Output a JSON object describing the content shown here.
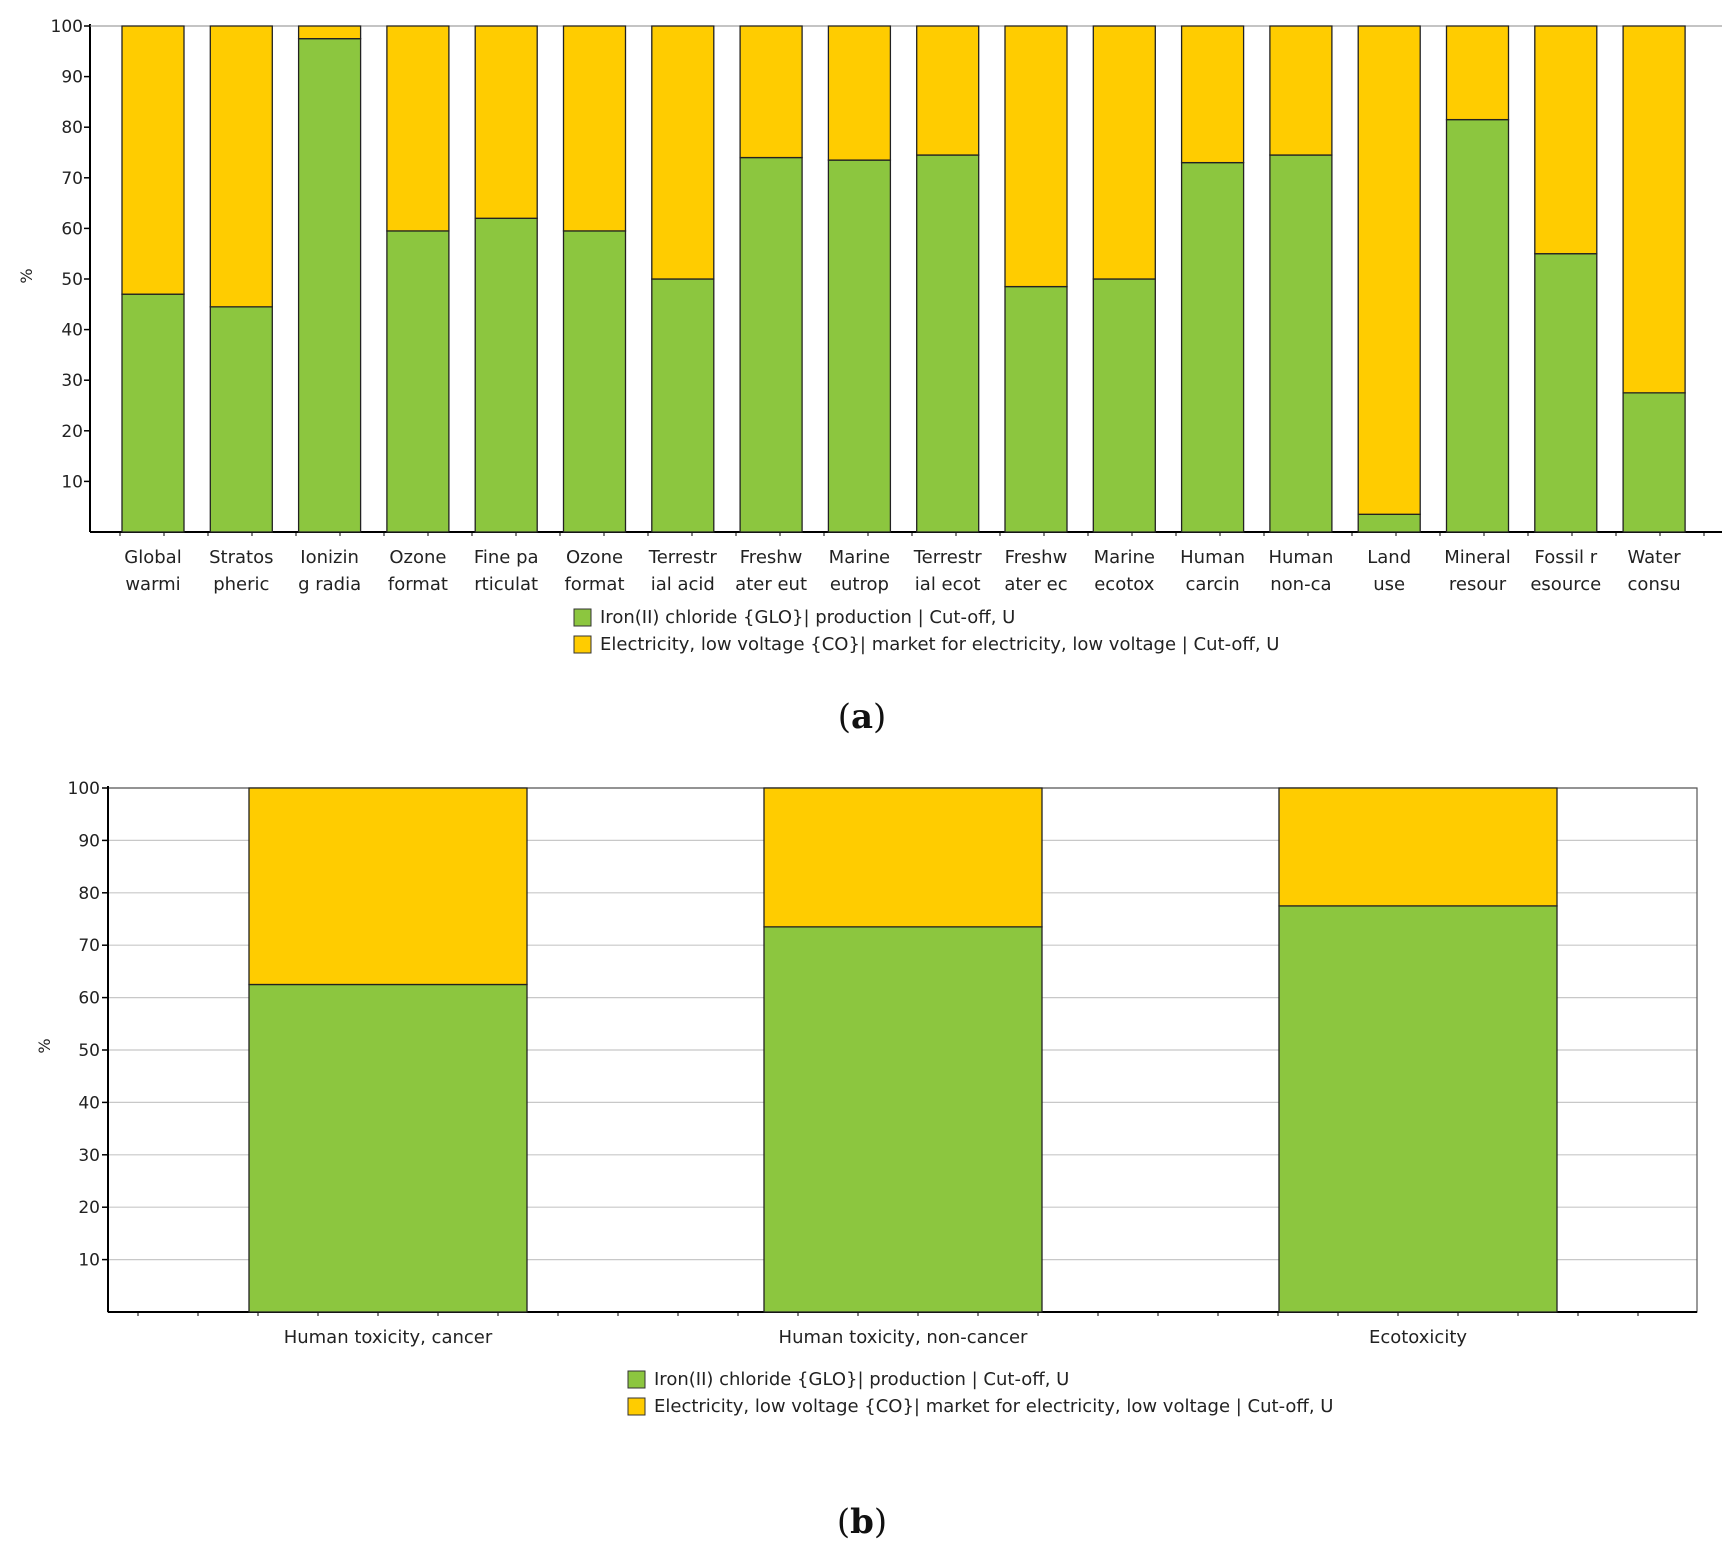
{
  "colors": {
    "green": "#8cc63f",
    "yellow": "#ffcc00",
    "grid": "#c8c8c8",
    "axis": "#000000"
  },
  "chart_data": [
    {
      "type": "bar",
      "stacked": true,
      "panel_label_open": "(",
      "panel_label_letter": "a",
      "panel_label_close": ")",
      "ylabel": "%",
      "ylim": [
        0,
        100
      ],
      "yticks": [
        10,
        20,
        30,
        40,
        50,
        60,
        70,
        80,
        90,
        100
      ],
      "grid": false,
      "categories": [
        [
          "Global",
          "warmi"
        ],
        [
          "Stratos",
          "pheric"
        ],
        [
          "Ionizin",
          "g radia"
        ],
        [
          "Ozone",
          "format"
        ],
        [
          "Fine pa",
          "rticulat"
        ],
        [
          "Ozone",
          "format"
        ],
        [
          "Terrestr",
          "ial acid"
        ],
        [
          "Freshw",
          "ater eut"
        ],
        [
          "Marine",
          "eutrop"
        ],
        [
          "Terrestr",
          "ial ecot"
        ],
        [
          "Freshw",
          "ater ec"
        ],
        [
          "Marine",
          "ecotox"
        ],
        [
          "Human",
          "carcin"
        ],
        [
          "Human",
          "non-ca"
        ],
        [
          "Land",
          "use"
        ],
        [
          "Mineral",
          "resour"
        ],
        [
          "Fossil r",
          "esource"
        ],
        [
          "Water",
          "consu"
        ]
      ],
      "series": [
        {
          "name": "Iron(II) chloride {GLO}| production | Cut-off, U",
          "color": "#8cc63f",
          "values": [
            47,
            44.5,
            97.5,
            59.5,
            62,
            59.5,
            50,
            74,
            73.5,
            74.5,
            48.5,
            50,
            73,
            74.5,
            3.5,
            81.5,
            55,
            27.5
          ]
        },
        {
          "name": "Electricity, low voltage {CO}| market for electricity, low voltage | Cut-off, U",
          "color": "#ffcc00",
          "values": [
            53,
            55.5,
            2.5,
            40.5,
            38,
            40.5,
            50,
            26,
            26.5,
            25.5,
            51.5,
            50,
            27,
            25.5,
            96.5,
            18.5,
            45,
            72.5
          ]
        }
      ]
    },
    {
      "type": "bar",
      "stacked": true,
      "panel_label_open": "(",
      "panel_label_letter": "b",
      "panel_label_close": ")",
      "ylabel": "%",
      "ylim": [
        0,
        100
      ],
      "yticks": [
        10,
        20,
        30,
        40,
        50,
        60,
        70,
        80,
        90,
        100
      ],
      "grid": true,
      "categories": [
        [
          "Human toxicity, cancer"
        ],
        [
          "Human toxicity, non-cancer"
        ],
        [
          "Ecotoxicity"
        ]
      ],
      "series": [
        {
          "name": "Iron(II) chloride {GLO}| production | Cut-off, U",
          "color": "#8cc63f",
          "values": [
            62.5,
            73.5,
            77.5
          ]
        },
        {
          "name": "Electricity, low voltage {CO}| market for electricity, low voltage | Cut-off, U",
          "color": "#ffcc00",
          "values": [
            37.5,
            26.5,
            22.5
          ]
        }
      ]
    }
  ]
}
